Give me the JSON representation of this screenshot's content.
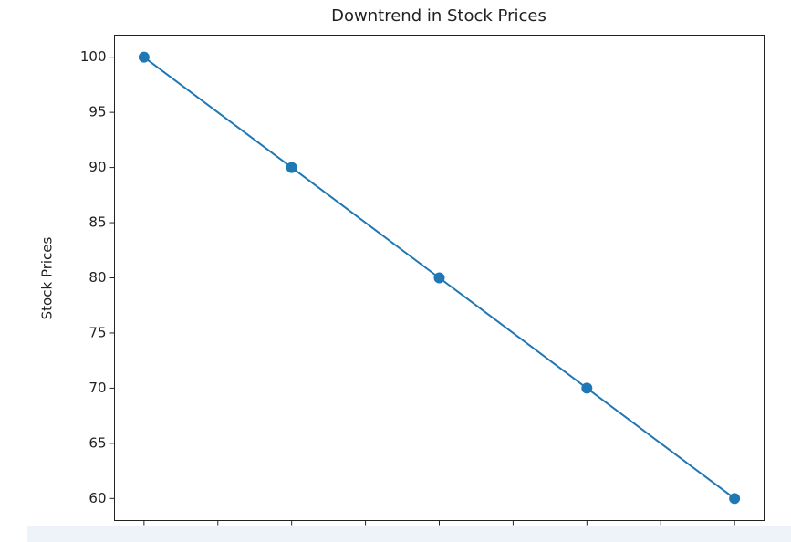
{
  "chart_data": {
    "type": "line",
    "title": "Downtrend in Stock Prices",
    "y_label": "Stock Prices",
    "x": [
      0,
      1,
      2,
      3,
      4
    ],
    "values": [
      100,
      90,
      80,
      70,
      60
    ],
    "color": "#1f77b4",
    "xlim": [
      -0.2,
      4.2
    ],
    "xticks": [
      0,
      0.5,
      1,
      1.5,
      2,
      2.5,
      3,
      3.5,
      4
    ],
    "ylim": [
      58,
      102
    ],
    "yticks": [
      60,
      65,
      70,
      75,
      80,
      85,
      90,
      95,
      100
    ]
  }
}
